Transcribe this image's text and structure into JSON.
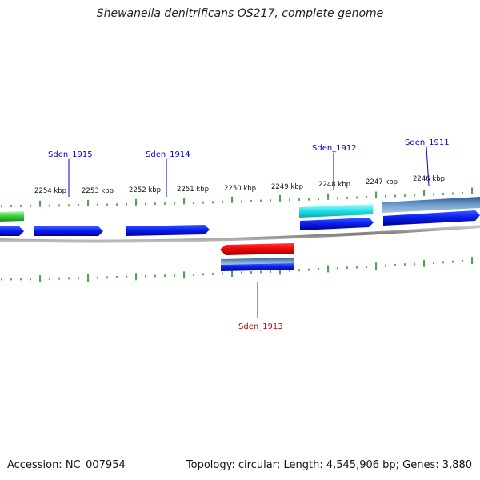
{
  "title": "Shewanella denitrificans OS217, complete genome",
  "footer": {
    "accession": "Accession: NC_007954",
    "summary": "Topology: circular; Length: 4,545,906 bp; Genes: 3,880"
  },
  "ruler_labels": [
    "2254 kbp",
    "2253 kbp",
    "2252 kbp",
    "2251 kbp",
    "2250 kbp",
    "2249 kbp",
    "2248 kbp",
    "2247 kbp",
    "2246 kbp"
  ],
  "genes": {
    "sden_1915": {
      "label": "Sden_1915",
      "color": "#0000cc"
    },
    "sden_1914": {
      "label": "Sden_1914",
      "color": "#0000cc"
    },
    "sden_1912": {
      "label": "Sden_1912",
      "color": "#0000cc"
    },
    "sden_1911": {
      "label": "Sden_1911",
      "color": "#0000cc"
    },
    "sden_1913": {
      "label": "Sden_1913",
      "color": "#cc0000"
    }
  },
  "colors": {
    "forward_cds": "#0000ee",
    "reverse_cds": "#ee0000",
    "tick": "#228b22",
    "backbone": "#8a8a8a",
    "cyan_feature": "#22e0e8",
    "steel_feature": "#4f7fb0",
    "green_feature": "#33cc33"
  }
}
